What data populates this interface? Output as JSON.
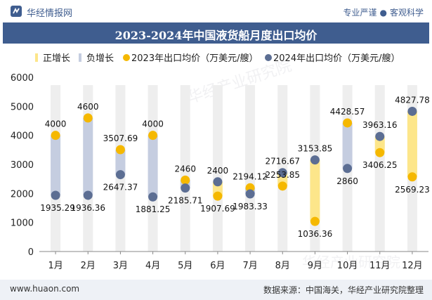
{
  "header": {
    "brand": "华经情报网",
    "tag_left": "专业严谨",
    "tag_sep": "●",
    "tag_right": "客观科学"
  },
  "footer": {
    "website": "www.huaon.com",
    "source": "数据来源：中国海关，华经产业研究院整理"
  },
  "watermark": "华经产业研究院",
  "colors": {
    "header_bg": "#3f5d8f",
    "increase": "#fde68a",
    "decrease": "#c5cde0",
    "bg_bar": "#eeeeee",
    "y2023": "#f5b800",
    "y2024": "#5c6e93"
  },
  "chart_data": {
    "type": "line",
    "title": "2023-2024年中国液货船月度出口均价",
    "legend": [
      "正增长",
      "负增长",
      "2023年出口均价（万美元/艘）",
      "2024年出口均价（万美元/艘）"
    ],
    "legend_position": "top",
    "categories": [
      "1月",
      "2月",
      "3月",
      "4月",
      "5月",
      "6月",
      "7月",
      "8月",
      "9月",
      "10月",
      "11月",
      "12月"
    ],
    "series": [
      {
        "name": "2023年出口均价（万美元/艘）",
        "values": [
          4000,
          4600,
          3507.69,
          4000,
          2460,
          1907.69,
          2194.12,
          2253.85,
          1036.36,
          4428.57,
          3406.25,
          2569.23
        ]
      },
      {
        "name": "2024年出口均价（万美元/艘）",
        "values": [
          1935.29,
          1936.36,
          2647.37,
          1881.25,
          2185.71,
          2400,
          1983.33,
          2716.67,
          3153.85,
          2860,
          3963.16,
          4827.78
        ]
      }
    ],
    "labels_2023": [
      "4000",
      "4600",
      "3507.69",
      "4000",
      "2460",
      "1907.69",
      "2194.12",
      "2253.85",
      "1036.36",
      "4428.57",
      "3406.25",
      "2569.23"
    ],
    "labels_2024": [
      "1935.29",
      "1936.36",
      "2647.37",
      "1881.25",
      "2185.71",
      "2400",
      "1983.33",
      "2716.67",
      "3153.85",
      "2860",
      "3963.16",
      "4827.78"
    ],
    "ylim": [
      0,
      6000
    ],
    "yticks": [
      "0",
      "1000",
      "2000",
      "3000",
      "4000",
      "5000",
      "6000"
    ],
    "grid": false
  }
}
